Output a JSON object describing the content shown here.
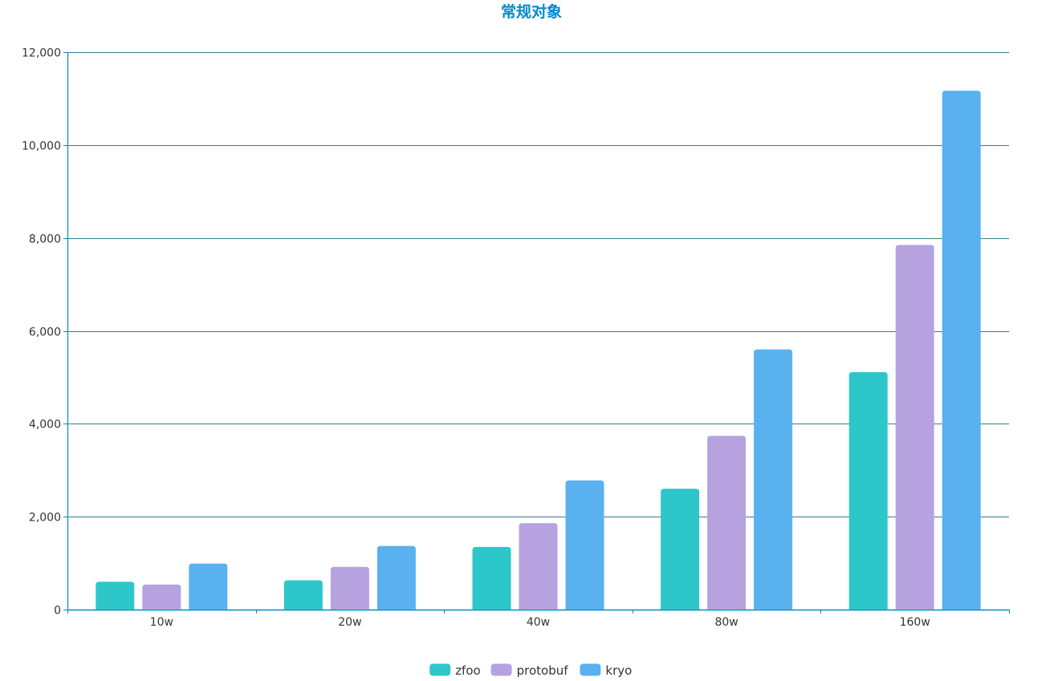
{
  "chart_data": {
    "type": "bar",
    "title": "常规对象",
    "categories": [
      "10w",
      "20w",
      "40w",
      "80w",
      "160w"
    ],
    "series": [
      {
        "name": "zfoo",
        "color": "#2ec7c9",
        "values": [
          600,
          630,
          1350,
          2600,
          5110
        ]
      },
      {
        "name": "protobuf",
        "color": "#b6a2de",
        "values": [
          540,
          920,
          1860,
          3740,
          7850
        ]
      },
      {
        "name": "kryo",
        "color": "#5ab1ef",
        "values": [
          990,
          1370,
          2780,
          5600,
          11170
        ]
      }
    ],
    "ylim": [
      0,
      12000
    ],
    "yticks": [
      0,
      2000,
      4000,
      6000,
      8000,
      10000,
      12000
    ],
    "ytick_labels": [
      "0",
      "2,000",
      "4,000",
      "6,000",
      "8,000",
      "10,000",
      "12,000"
    ],
    "xlabel": "",
    "ylabel": "",
    "grid": true,
    "legend_position": "bottom-center",
    "colors": {
      "title": "#008acd",
      "axis": "#008acd",
      "grid": "#3b7a8a",
      "tick_text": "#333333"
    }
  }
}
